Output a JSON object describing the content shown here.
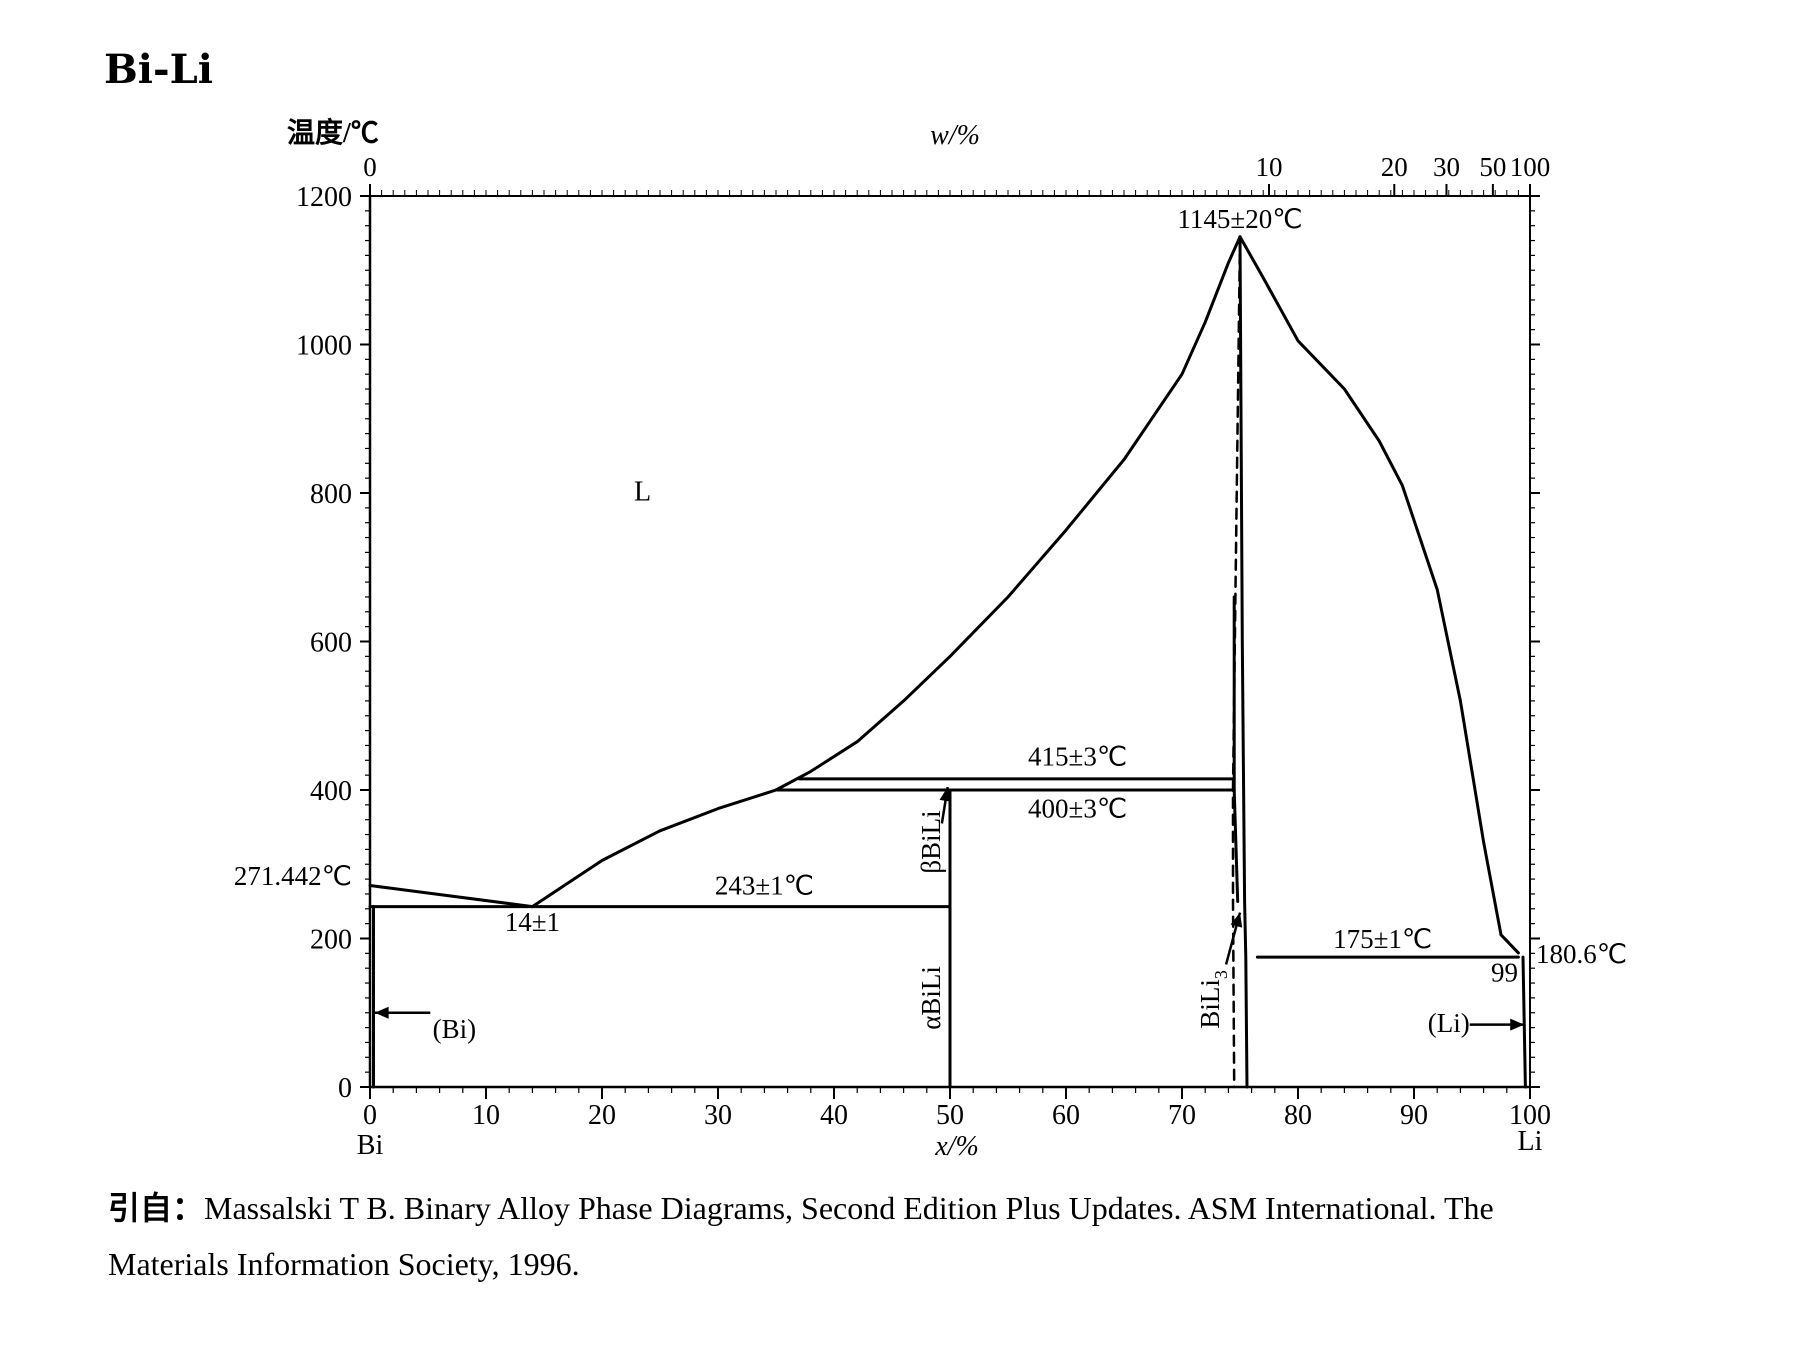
{
  "title": "Bi-Li",
  "chart_data": {
    "type": "line",
    "title": "Bi-Li",
    "ylabel": "温度/℃",
    "xlabel": "x/%",
    "top_xlabel": "w/%",
    "ylim": [
      0,
      1200
    ],
    "xlim": [
      0,
      100
    ],
    "y_ticks": [
      0,
      200,
      400,
      600,
      800,
      1000,
      1200
    ],
    "x_ticks": [
      0,
      10,
      20,
      30,
      40,
      50,
      60,
      70,
      80,
      90,
      100
    ],
    "top_ticks": [
      {
        "label": "0",
        "x": 0
      },
      {
        "label": "10",
        "x": 77.5
      },
      {
        "label": "20",
        "x": 88.3
      },
      {
        "label": "30",
        "x": 92.8
      },
      {
        "label": "50",
        "x": 96.8
      },
      {
        "label": "100",
        "x": 100
      }
    ],
    "left_element": "Bi",
    "right_element": "Li",
    "curves": [
      {
        "name": "liquidus-bi",
        "style": "solid",
        "points": [
          [
            0,
            271.442
          ],
          [
            14,
            243
          ]
        ]
      },
      {
        "name": "liquidus-eutectic-to-peritectic",
        "style": "solid",
        "points": [
          [
            14,
            243
          ],
          [
            20,
            305
          ],
          [
            25,
            345
          ],
          [
            30,
            375
          ],
          [
            35,
            400
          ]
        ]
      },
      {
        "name": "liquidus-rising",
        "style": "solid",
        "points": [
          [
            35,
            400
          ],
          [
            38,
            425
          ],
          [
            42,
            465
          ],
          [
            46,
            520
          ],
          [
            50,
            580
          ],
          [
            55,
            660
          ],
          [
            60,
            750
          ],
          [
            65,
            845
          ],
          [
            70,
            960
          ],
          [
            72,
            1030
          ],
          [
            74,
            1110
          ],
          [
            75,
            1145
          ]
        ]
      },
      {
        "name": "liquidus-li-side",
        "style": "solid",
        "points": [
          [
            75,
            1145
          ],
          [
            77,
            1090
          ],
          [
            80,
            1005
          ],
          [
            84,
            940
          ],
          [
            87,
            870
          ],
          [
            89,
            810
          ],
          [
            92,
            670
          ],
          [
            94,
            520
          ],
          [
            96,
            330
          ],
          [
            97.5,
            205
          ],
          [
            99,
            180.6
          ]
        ]
      },
      {
        "name": "eutectic-243",
        "style": "solid",
        "points": [
          [
            0,
            243
          ],
          [
            50,
            243
          ]
        ]
      },
      {
        "name": "peritectic-415",
        "style": "solid",
        "points": [
          [
            37,
            415
          ],
          [
            74.5,
            415
          ]
        ]
      },
      {
        "name": "transition-400",
        "style": "solid",
        "points": [
          [
            35,
            400
          ],
          [
            74.5,
            400
          ]
        ]
      },
      {
        "name": "eutectic-175",
        "style": "solid",
        "points": [
          [
            76.5,
            175
          ],
          [
            99,
            175
          ]
        ]
      },
      {
        "name": "bili-line",
        "style": "solid",
        "points": [
          [
            50,
            0
          ],
          [
            50,
            400
          ]
        ]
      },
      {
        "name": "bili3-left-upper",
        "style": "solid",
        "points": [
          [
            74.5,
            660
          ],
          [
            74.5,
            400
          ]
        ]
      },
      {
        "name": "bili3-left-boundary",
        "style": "solid",
        "points": [
          [
            74.5,
            400
          ],
          [
            74.8,
            250
          ]
        ]
      },
      {
        "name": "bili3-left-dashed",
        "style": "dashed",
        "points": [
          [
            75,
            1145
          ],
          [
            74.6,
            660
          ],
          [
            74.4,
            400
          ],
          [
            74.4,
            250
          ],
          [
            74.5,
            0
          ]
        ]
      },
      {
        "name": "bili3-right",
        "style": "solid",
        "points": [
          [
            75,
            1145
          ],
          [
            75.2,
            600
          ],
          [
            75.4,
            250
          ],
          [
            75.5,
            175
          ],
          [
            75.6,
            0
          ]
        ]
      },
      {
        "name": "bi-solvus",
        "style": "solid",
        "points": [
          [
            0.3,
            0
          ],
          [
            0.3,
            243
          ]
        ]
      },
      {
        "name": "li-solvus",
        "style": "solid",
        "points": [
          [
            99.6,
            0
          ],
          [
            99.4,
            175
          ]
        ]
      }
    ],
    "annotations": {
      "region_l": "L",
      "max_temp": "1145±20℃",
      "peritectic": "415±3℃",
      "transition": "400±3℃",
      "eutectic_bi": "243±1℃",
      "eutectic_comp": "14±1",
      "bi_melting": "271.442℃",
      "li_melting": "180.6℃",
      "eutectic_li": "175±1℃",
      "li_comp": "99",
      "beta_bili": "βBiLi",
      "alpha_bili": "αBiLi",
      "bili3": "BiLi",
      "bili3_sub": "3",
      "phase_bi": "(Bi)",
      "phase_li": "(Li)"
    }
  },
  "citation": {
    "prefix": "引自：",
    "line1": "Massalski T B. Binary Alloy Phase Diagrams, Second Edition Plus Updates. ASM International. The",
    "line2": "Materials Information Society, 1996."
  }
}
